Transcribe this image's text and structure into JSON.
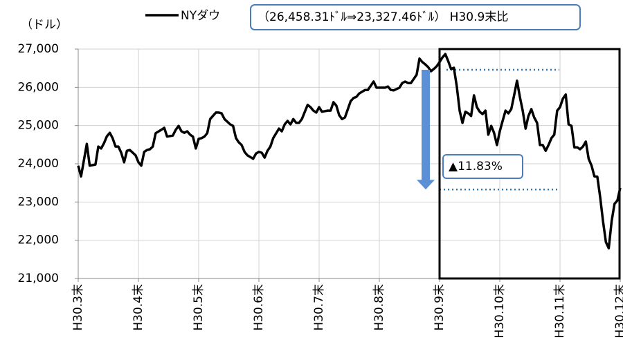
{
  "chart_data": {
    "type": "line",
    "y_label": "（ドル）",
    "note": "（26,458.31ﾄﾞﾙ⇒23,327.46ﾄﾞﾙ） H30.9末比",
    "annotation": "▲11.83%",
    "reference_lines": [
      26458.31,
      23327.46
    ],
    "highlight_xlim": [
      126,
      189
    ],
    "x": [
      0,
      1,
      3,
      4,
      6,
      7,
      8,
      9,
      10,
      11,
      12,
      13,
      14,
      15,
      16,
      17,
      18,
      20,
      21,
      22,
      23,
      24,
      25,
      26,
      27,
      29,
      30,
      31,
      33,
      34,
      35,
      36,
      37,
      38,
      39,
      40,
      41,
      42,
      43,
      44,
      45,
      46,
      48,
      49,
      50,
      51,
      53,
      54,
      55,
      56,
      57,
      58,
      59,
      61,
      62,
      63,
      64,
      65,
      66,
      67,
      68,
      70,
      71,
      72,
      73,
      74,
      75,
      76,
      77,
      78,
      80,
      81,
      82,
      83,
      84,
      85,
      87,
      88,
      89,
      90,
      91,
      92,
      93,
      95,
      96,
      97,
      98,
      100,
      101,
      102,
      103,
      104,
      106,
      107,
      108,
      109,
      110,
      112,
      113,
      114,
      115,
      116,
      118,
      119,
      120,
      121,
      122,
      123,
      124,
      125,
      126,
      127,
      128,
      129,
      130,
      131,
      132,
      133,
      134,
      135,
      136,
      137,
      138,
      139,
      140,
      141,
      142,
      143,
      144,
      145,
      146,
      147,
      148,
      149,
      150,
      151,
      152,
      153,
      154,
      155,
      156,
      157,
      158,
      159,
      160,
      161,
      162,
      163,
      164,
      165,
      166,
      167,
      168,
      169,
      170,
      171,
      172,
      173,
      174,
      175,
      176,
      177,
      178,
      179,
      180,
      181,
      182,
      183,
      184,
      185,
      186,
      187,
      188,
      189
    ],
    "series": [
      {
        "name": "NYダウ",
        "color": "#000000",
        "values": [
          23950,
          23670,
          24520,
          23950,
          23980,
          24450,
          24400,
          24540,
          24720,
          24810,
          24670,
          24450,
          24450,
          24290,
          24040,
          24340,
          24360,
          24220,
          24040,
          23950,
          24310,
          24360,
          24380,
          24450,
          24800,
          24890,
          24940,
          24710,
          24740,
          24890,
          24990,
          24850,
          24810,
          24850,
          24760,
          24710,
          24400,
          24650,
          24670,
          24710,
          24800,
          25170,
          25340,
          25340,
          25320,
          25170,
          25030,
          24990,
          24670,
          24560,
          24490,
          24310,
          24220,
          24130,
          24270,
          24310,
          24290,
          24160,
          24340,
          24450,
          24670,
          24920,
          24850,
          25030,
          25120,
          25030,
          25170,
          25070,
          25070,
          25170,
          25540,
          25480,
          25390,
          25340,
          25480,
          25360,
          25390,
          25390,
          25610,
          25520,
          25270,
          25170,
          25210,
          25640,
          25720,
          25750,
          25840,
          25930,
          25930,
          26040,
          26150,
          25990,
          25990,
          25990,
          26020,
          25930,
          25920,
          25990,
          26110,
          26150,
          26110,
          26110,
          26330,
          26750,
          26660,
          26600,
          26530,
          26420,
          26480,
          26550,
          26660,
          26780,
          26870,
          26690,
          26480,
          26510,
          26020,
          25390,
          25070,
          25360,
          25320,
          25250,
          25790,
          25480,
          25360,
          25300,
          25390,
          24760,
          24990,
          24810,
          24490,
          24850,
          25120,
          25390,
          25320,
          25430,
          25790,
          26170,
          25750,
          25390,
          24920,
          25250,
          25430,
          25210,
          25070,
          24490,
          24490,
          24340,
          24490,
          24670,
          24760,
          25390,
          25480,
          25700,
          25810,
          25030,
          24990,
          24430,
          24430,
          24380,
          24450,
          24580,
          24130,
          23950,
          23670,
          23660,
          23130,
          22500,
          21950,
          21790,
          22500,
          22950,
          23040,
          23370
        ]
      }
    ],
    "xlim": [
      0,
      189
    ],
    "xticks": [
      {
        "value": 0,
        "label": "H30.3末"
      },
      {
        "value": 21,
        "label": "H30.4末"
      },
      {
        "value": 42,
        "label": "H30.5末"
      },
      {
        "value": 63,
        "label": "H30.6末"
      },
      {
        "value": 84,
        "label": "H30.7末"
      },
      {
        "value": 105,
        "label": "H30.8末"
      },
      {
        "value": 126,
        "label": "H30.9末"
      },
      {
        "value": 147,
        "label": "H30.10末"
      },
      {
        "value": 168,
        "label": "H30.11末"
      },
      {
        "value": 189,
        "label": "H30.12末"
      }
    ],
    "ylim": [
      21000,
      27000
    ],
    "yticks": [
      {
        "value": 21000,
        "label": "21,000"
      },
      {
        "value": 22000,
        "label": "22,000"
      },
      {
        "value": 23000,
        "label": "23,000"
      },
      {
        "value": 24000,
        "label": "24,000"
      },
      {
        "value": 25000,
        "label": "25,000"
      },
      {
        "value": 26000,
        "label": "26,000"
      },
      {
        "value": 27000,
        "label": "27,000"
      }
    ],
    "grid": true
  }
}
